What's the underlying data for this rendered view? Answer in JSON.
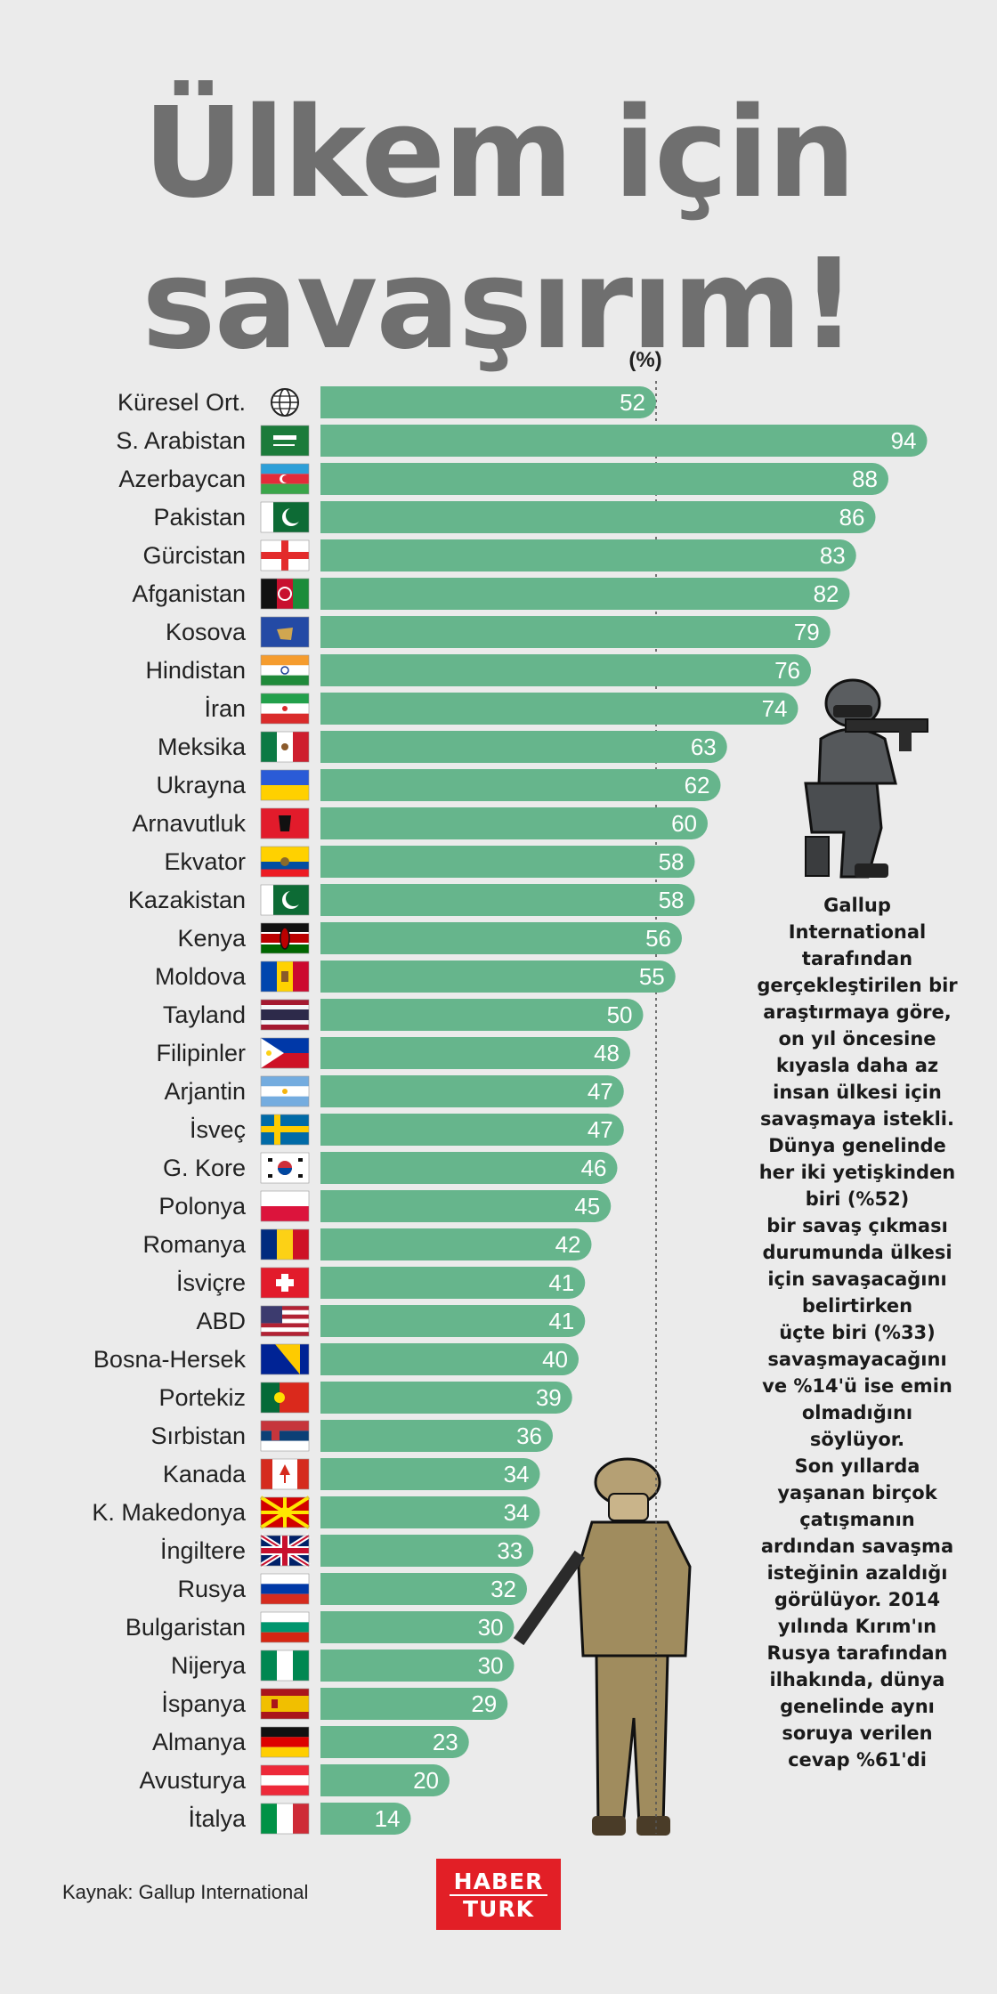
{
  "title_line1": "Ülkem için",
  "title_line2": "savaşırım!",
  "unit_label": "(%)",
  "description": "Gallup\nInternational\ntarafından\ngerçekleştirilen bir\naraştırmaya göre,\non yıl öncesine\nkıyasla daha az\ninsan ülkesi için\nsavaşmaya istekli.\nDünya genelinde\nher iki yetişkinden\nbiri (%52)\nbir savaş çıkması\ndurumunda ülkesi\niçin savaşacağını\nbelirtirken\nüçte biri (%33)\nsavaşmayacağını\nve %14'ü ise emin\nolmadığını\nsöylüyor.\nSon yıllarda\nyaşanan birçok\nçatışmanın\nardından savaşma\nisteğinin azaldığı\ngörülüyor. 2014\nyılında Kırım'ın\nRusya tarafından\nilhakında, dünya\ngenelinde aynı\nsoruya verilen\ncevap %61'di",
  "source": "Kaynak: Gallup International",
  "logo_line1": "HABER",
  "logo_line2": "TURK",
  "colors": {
    "bar": "#66b58c",
    "background": "#ebebeb",
    "title": "#6f6f6f",
    "logo": "#e21f26"
  },
  "chart_data": {
    "type": "bar",
    "orientation": "horizontal",
    "title": "Ülkem için savaşırım!",
    "unit": "(%)",
    "xlim": [
      0,
      100
    ],
    "reference_line": 52,
    "categories": [
      "Küresel Ort.",
      "S. Arabistan",
      "Azerbaycan",
      "Pakistan",
      "Gürcistan",
      "Afganistan",
      "Kosova",
      "Hindistan",
      "İran",
      "Meksika",
      "Ukrayna",
      "Arnavutluk",
      "Ekvator",
      "Kazakistan",
      "Kenya",
      "Moldova",
      "Tayland",
      "Filipinler",
      "Arjantin",
      "İsveç",
      "G. Kore",
      "Polonya",
      "Romanya",
      "İsviçre",
      "ABD",
      "Bosna-Hersek",
      "Portekiz",
      "Sırbistan",
      "Kanada",
      "K. Makedonya",
      "İngiltere",
      "Rusya",
      "Bulgaristan",
      "Nijerya",
      "İspanya",
      "Almanya",
      "Avusturya",
      "İtalya"
    ],
    "values": [
      52,
      94,
      88,
      86,
      83,
      82,
      79,
      76,
      74,
      63,
      62,
      60,
      58,
      58,
      56,
      55,
      50,
      48,
      47,
      47,
      46,
      45,
      42,
      41,
      41,
      40,
      39,
      36,
      34,
      34,
      33,
      32,
      30,
      30,
      29,
      23,
      20,
      14
    ],
    "flags": [
      "globe-icon",
      "saudi-arabia-flag",
      "azerbaijan-flag",
      "pakistan-flag",
      "georgia-flag",
      "afghanistan-flag",
      "kosovo-flag",
      "india-flag",
      "iran-flag",
      "mexico-flag",
      "ukraine-flag",
      "albania-flag",
      "ecuador-flag",
      "kazakhstan-flag",
      "kenya-flag",
      "moldova-flag",
      "thailand-flag",
      "philippines-flag",
      "argentina-flag",
      "sweden-flag",
      "south-korea-flag",
      "poland-flag",
      "romania-flag",
      "switzerland-flag",
      "usa-flag",
      "bosnia-flag",
      "portugal-flag",
      "serbia-flag",
      "canada-flag",
      "north-macedonia-flag",
      "uk-flag",
      "russia-flag",
      "bulgaria-flag",
      "nigeria-flag",
      "spain-flag",
      "germany-flag",
      "austria-flag",
      "italy-flag"
    ]
  }
}
